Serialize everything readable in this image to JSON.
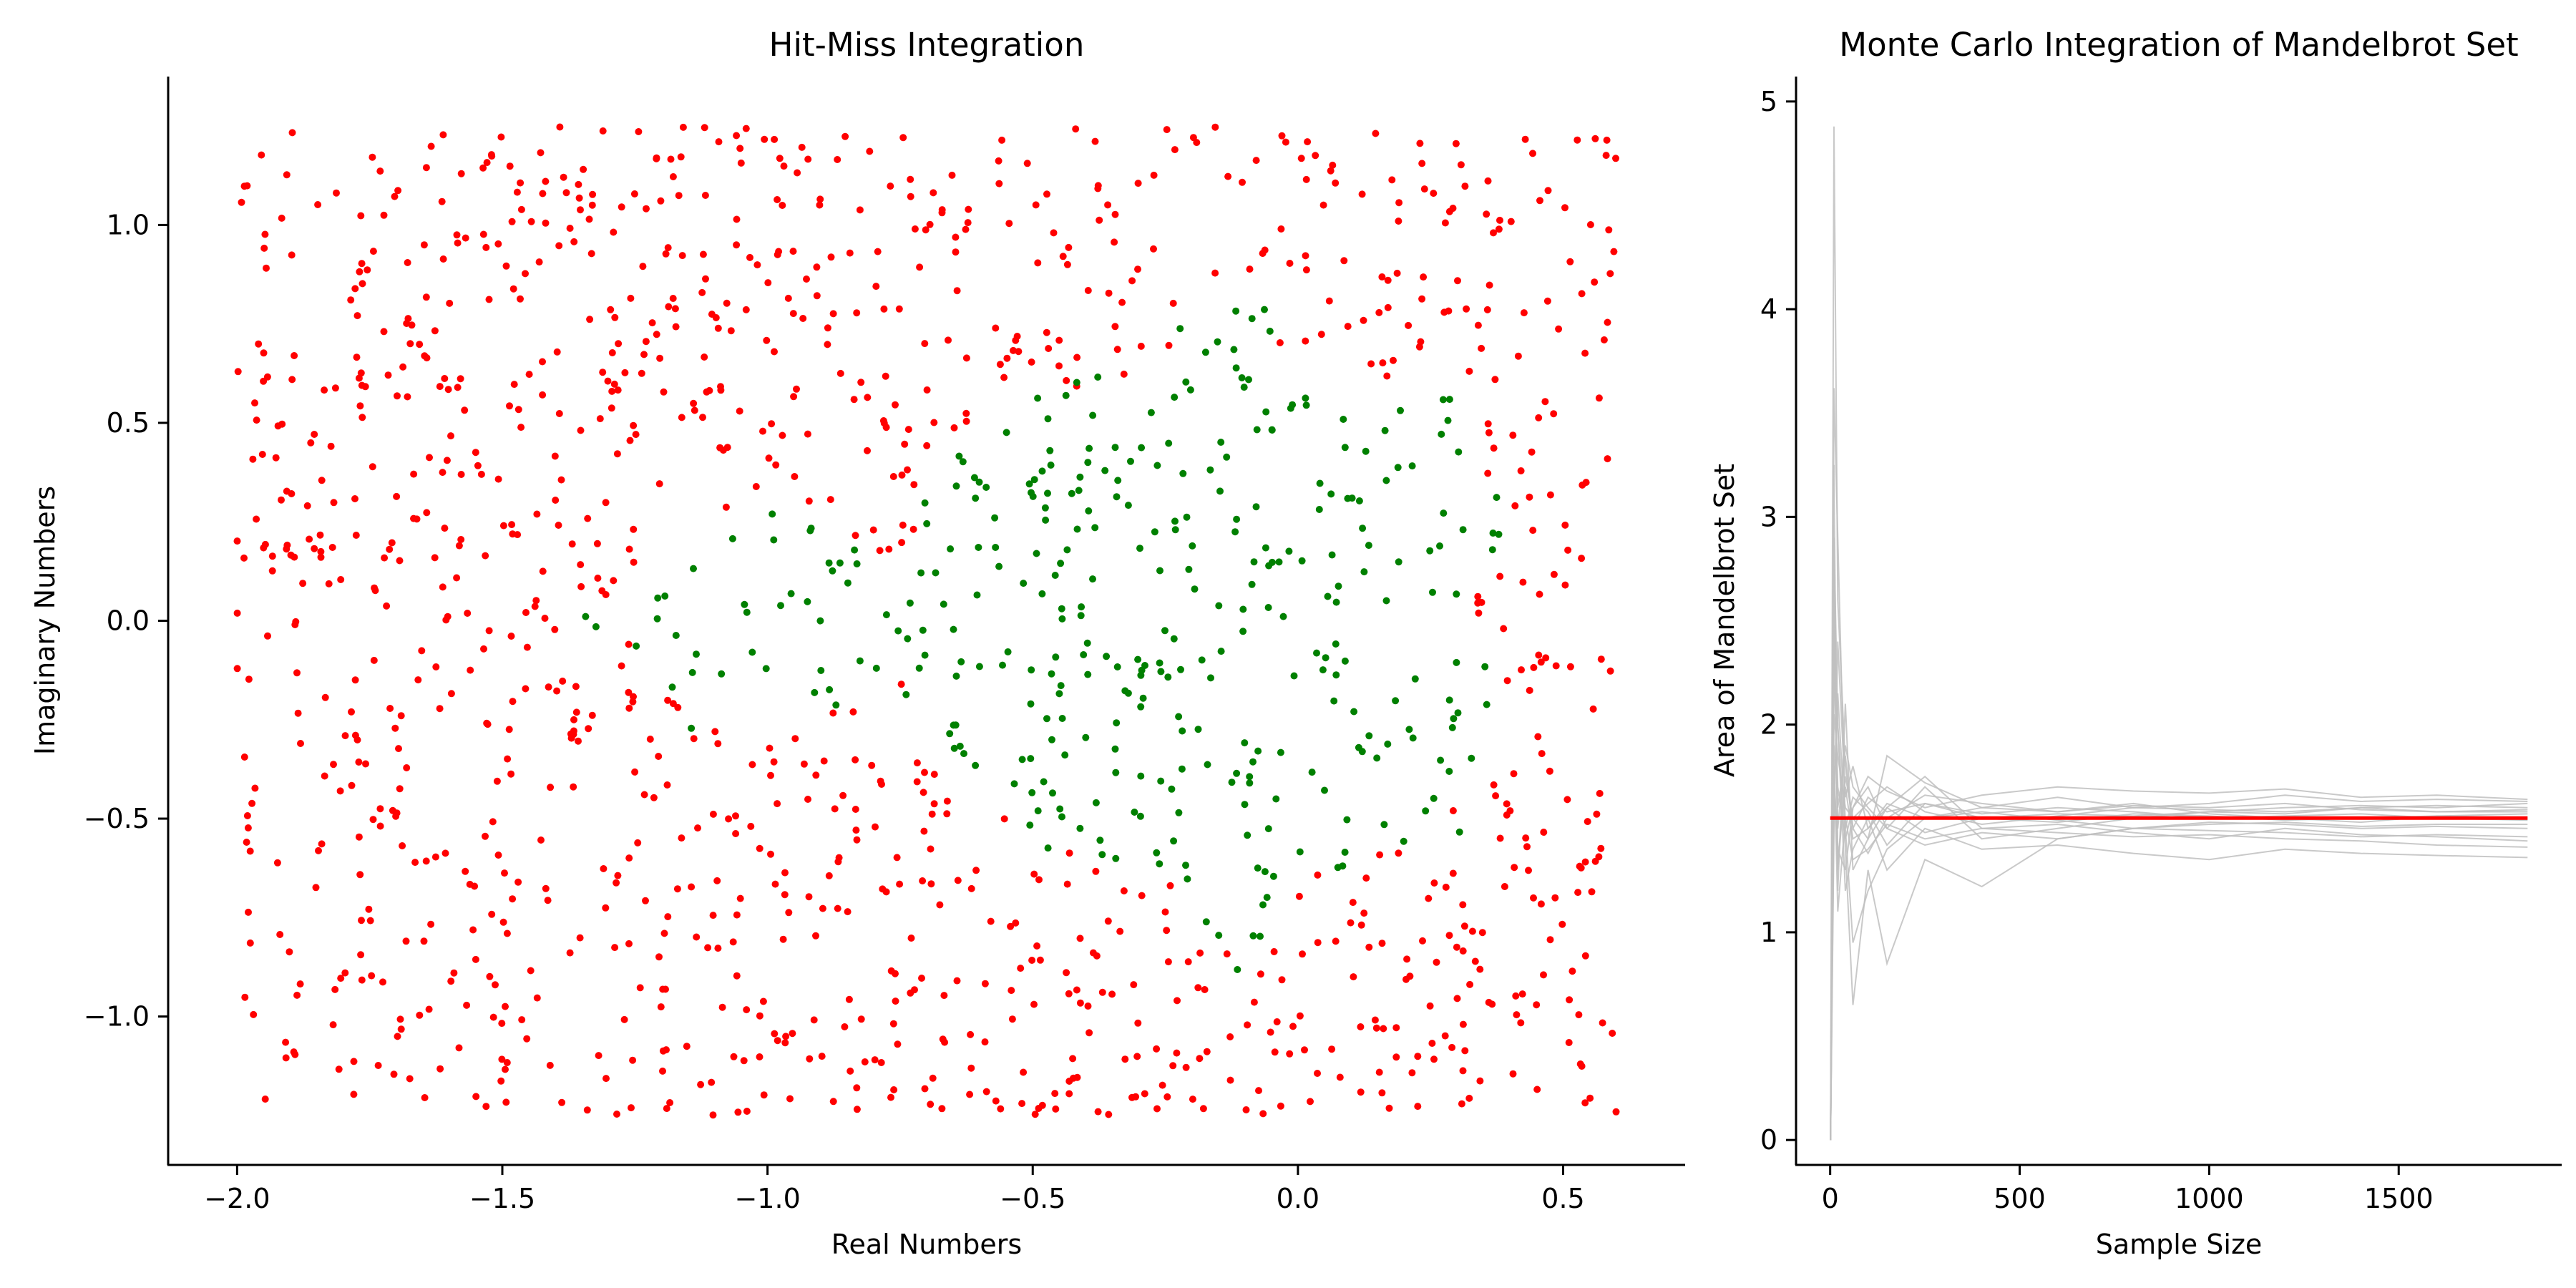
{
  "colors": {
    "hit": "#008000",
    "miss": "#ff0000",
    "trial": "#c0c0c0",
    "mean": "#ff0000",
    "axis": "#000000"
  },
  "chart_data": [
    {
      "type": "scatter",
      "title": "Hit-Miss Integration",
      "xlabel": "Real Numbers",
      "ylabel": "Imaginary Numbers",
      "xlim": [
        -2.13,
        0.73
      ],
      "ylim": [
        -1.375,
        1.375
      ],
      "xticks": [
        -2.0,
        -1.5,
        -1.0,
        -0.5,
        0.0,
        0.5
      ],
      "xtick_labels": [
        "−2.0",
        "−1.5",
        "−1.0",
        "−0.5",
        "0.0",
        "0.5"
      ],
      "yticks": [
        -1.0,
        -0.5,
        0.0,
        0.5,
        1.0
      ],
      "ytick_labels": [
        "−1.0",
        "−0.5",
        "0.0",
        "0.5",
        "1.0"
      ],
      "grid": false,
      "sampling": {
        "n_points": 1500,
        "x_range": [
          -2.0,
          0.6
        ],
        "y_range": [
          -1.25,
          1.25
        ],
        "max_iter": 60
      },
      "series": [
        {
          "role": "inside",
          "color": "#008000"
        },
        {
          "role": "outside",
          "color": "#ff0000"
        }
      ]
    },
    {
      "type": "line",
      "title": "Monte Carlo Integration of Mandelbrot Set",
      "xlabel": "Sample Size",
      "ylabel": "Area of Mandelbrot Set",
      "xlim": [
        -90,
        1930
      ],
      "ylim": [
        -0.12,
        5.12
      ],
      "xticks": [
        0,
        500,
        1000,
        1500
      ],
      "yticks": [
        0,
        1,
        2,
        3,
        4,
        5
      ],
      "grid": false,
      "mean_value": 1.55,
      "trials": [
        {
          "x": [
            1,
            10,
            20,
            40,
            60,
            100,
            150,
            250,
            400,
            600,
            800,
            1000,
            1200,
            1400,
            1600,
            1840
          ],
          "y": [
            0.0,
            4.88,
            2.6,
            1.8,
            1.5,
            1.65,
            1.58,
            1.62,
            1.55,
            1.57,
            1.56,
            1.58,
            1.6,
            1.61,
            1.6,
            1.62
          ]
        },
        {
          "x": [
            1,
            10,
            20,
            40,
            60,
            100,
            150,
            250,
            400,
            600,
            800,
            1000,
            1200,
            1400,
            1600,
            1840
          ],
          "y": [
            0.0,
            3.25,
            1.2,
            2.1,
            1.3,
            1.45,
            1.6,
            1.75,
            1.5,
            1.52,
            1.48,
            1.45,
            1.5,
            1.47,
            1.46,
            1.44
          ]
        },
        {
          "x": [
            1,
            10,
            20,
            40,
            60,
            100,
            150,
            250,
            400,
            600,
            800,
            1000,
            1200,
            1400,
            1600,
            1840
          ],
          "y": [
            0.0,
            3.62,
            2.9,
            1.5,
            0.95,
            1.2,
            1.4,
            1.55,
            1.6,
            1.58,
            1.62,
            1.57,
            1.55,
            1.53,
            1.56,
            1.55
          ]
        },
        {
          "x": [
            1,
            10,
            20,
            40,
            60,
            100,
            150,
            250,
            400,
            600,
            800,
            1000,
            1200,
            1400,
            1600,
            1840
          ],
          "y": [
            0.0,
            2.2,
            2.0,
            1.4,
            0.65,
            1.3,
            0.85,
            1.35,
            1.22,
            1.45,
            1.5,
            1.52,
            1.53,
            1.51,
            1.52,
            1.52
          ]
        },
        {
          "x": [
            1,
            10,
            20,
            40,
            60,
            100,
            150,
            250,
            400,
            600,
            800,
            1000,
            1200,
            1400,
            1600,
            1840
          ],
          "y": [
            0.0,
            2.6,
            1.5,
            1.9,
            1.7,
            1.6,
            1.5,
            1.7,
            1.45,
            1.5,
            1.55,
            1.58,
            1.57,
            1.6,
            1.58,
            1.59
          ]
        },
        {
          "x": [
            1,
            10,
            20,
            40,
            60,
            100,
            150,
            250,
            400,
            600,
            800,
            1000,
            1200,
            1400,
            1600,
            1840
          ],
          "y": [
            0.0,
            1.8,
            1.3,
            1.75,
            1.55,
            1.45,
            1.85,
            1.72,
            1.6,
            1.65,
            1.6,
            1.62,
            1.66,
            1.63,
            1.64,
            1.63
          ]
        },
        {
          "x": [
            1,
            10,
            20,
            40,
            60,
            100,
            150,
            250,
            400,
            600,
            800,
            1000,
            1200,
            1400,
            1600,
            1840
          ],
          "y": [
            0.0,
            2.9,
            2.0,
            1.2,
            1.4,
            1.55,
            1.3,
            1.5,
            1.4,
            1.42,
            1.38,
            1.35,
            1.4,
            1.38,
            1.37,
            1.36
          ]
        },
        {
          "x": [
            1,
            10,
            20,
            40,
            60,
            100,
            150,
            250,
            400,
            600,
            800,
            1000,
            1200,
            1400,
            1600,
            1840
          ],
          "y": [
            0.0,
            1.5,
            2.4,
            1.65,
            1.8,
            1.5,
            1.6,
            1.48,
            1.55,
            1.53,
            1.57,
            1.56,
            1.54,
            1.55,
            1.56,
            1.57
          ]
        },
        {
          "x": [
            1,
            10,
            20,
            40,
            60,
            100,
            150,
            250,
            400,
            600,
            800,
            1000,
            1200,
            1400,
            1600,
            1840
          ],
          "y": [
            0.0,
            2.3,
            1.7,
            1.45,
            1.6,
            1.75,
            1.68,
            1.6,
            1.66,
            1.7,
            1.68,
            1.67,
            1.69,
            1.65,
            1.66,
            1.64
          ]
        },
        {
          "x": [
            1,
            10,
            20,
            40,
            60,
            100,
            150,
            250,
            400,
            600,
            800,
            1000,
            1200,
            1400,
            1600,
            1840
          ],
          "y": [
            0.0,
            1.9,
            1.1,
            1.55,
            1.35,
            1.4,
            1.52,
            1.45,
            1.5,
            1.48,
            1.46,
            1.47,
            1.45,
            1.44,
            1.42,
            1.41
          ]
        },
        {
          "x": [
            1,
            10,
            20,
            40,
            60,
            100,
            150,
            250,
            400,
            600,
            800,
            1000,
            1200,
            1400,
            1600,
            1840
          ],
          "y": [
            0.0,
            2.05,
            1.85,
            1.6,
            1.55,
            1.62,
            1.7,
            1.58,
            1.52,
            1.56,
            1.6,
            1.59,
            1.58,
            1.6,
            1.61,
            1.6
          ]
        },
        {
          "x": [
            1,
            10,
            20,
            40,
            60,
            100,
            150,
            250,
            400,
            600,
            800,
            1000,
            1200,
            1400,
            1600,
            1840
          ],
          "y": [
            0.0,
            2.75,
            1.35,
            1.7,
            1.45,
            1.5,
            1.62,
            1.55,
            1.58,
            1.54,
            1.5,
            1.53,
            1.52,
            1.5,
            1.51,
            1.5
          ]
        },
        {
          "x": [
            1,
            10,
            20,
            40,
            60,
            100,
            150,
            250,
            400,
            600,
            800,
            1000,
            1200,
            1400,
            1600,
            1840
          ],
          "y": [
            0.0,
            1.6,
            2.15,
            1.5,
            1.65,
            1.58,
            1.42,
            1.62,
            1.57,
            1.6,
            1.58,
            1.55,
            1.56,
            1.57,
            1.55,
            1.54
          ]
        },
        {
          "x": [
            1,
            10,
            20,
            40,
            60,
            100,
            150,
            250,
            400,
            600,
            800,
            1000,
            1200,
            1400,
            1600,
            1840
          ],
          "y": [
            0.0,
            2.45,
            1.6,
            1.85,
            1.5,
            1.38,
            1.55,
            1.66,
            1.62,
            1.58,
            1.61,
            1.6,
            1.62,
            1.59,
            1.58,
            1.58
          ]
        },
        {
          "x": [
            1,
            10,
            20,
            40,
            60,
            100,
            150,
            250,
            400,
            600,
            800,
            1000,
            1200,
            1400,
            1600,
            1840
          ],
          "y": [
            0.0,
            1.75,
            1.4,
            1.3,
            1.6,
            1.7,
            1.5,
            1.42,
            1.48,
            1.45,
            1.5,
            1.49,
            1.48,
            1.46,
            1.47,
            1.46
          ]
        }
      ]
    }
  ]
}
